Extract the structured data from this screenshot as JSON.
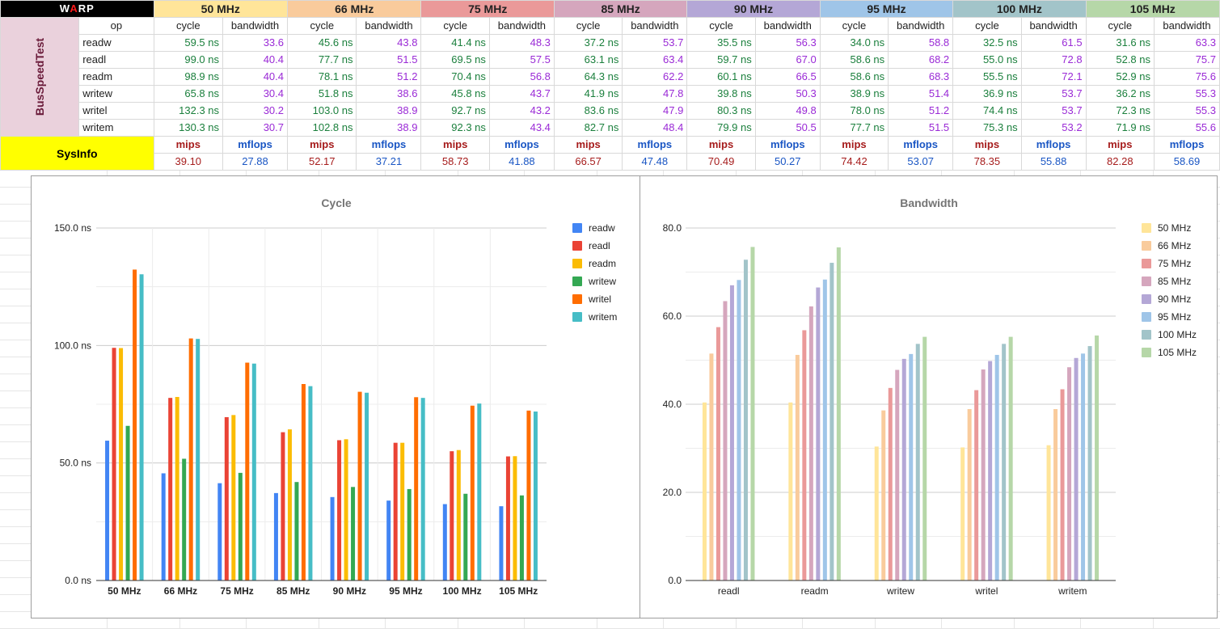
{
  "sheet": {
    "corner_label_pre": "W",
    "corner_label_accent": "A",
    "corner_label_post": "RP",
    "freq_headers": [
      "50 MHz",
      "66 MHz",
      "75 MHz",
      "85 MHz",
      "90 MHz",
      "95 MHz",
      "100 MHz",
      "105 MHz"
    ],
    "freq_colors": [
      "#ffe599",
      "#f9cb9c",
      "#ea9999",
      "#d5a6bd",
      "#b4a7d6",
      "#9fc5e8",
      "#a2c4c9",
      "#b6d7a8"
    ],
    "op_header": "op",
    "cycle_header": "cycle",
    "bandwidth_header": "bandwidth",
    "test_group_label": "BusSpeedTest",
    "rows": [
      {
        "op": "readw",
        "cycle": [
          "59.5 ns",
          "45.6 ns",
          "41.4 ns",
          "37.2 ns",
          "35.5 ns",
          "34.0 ns",
          "32.5 ns",
          "31.6 ns"
        ],
        "bandwidth": [
          "33.6",
          "43.8",
          "48.3",
          "53.7",
          "56.3",
          "58.8",
          "61.5",
          "63.3"
        ]
      },
      {
        "op": "readl",
        "cycle": [
          "99.0 ns",
          "77.7 ns",
          "69.5 ns",
          "63.1 ns",
          "59.7 ns",
          "58.6 ns",
          "55.0 ns",
          "52.8 ns"
        ],
        "bandwidth": [
          "40.4",
          "51.5",
          "57.5",
          "63.4",
          "67.0",
          "68.2",
          "72.8",
          "75.7"
        ]
      },
      {
        "op": "readm",
        "cycle": [
          "98.9 ns",
          "78.1 ns",
          "70.4 ns",
          "64.3 ns",
          "60.1 ns",
          "58.6 ns",
          "55.5 ns",
          "52.9 ns"
        ],
        "bandwidth": [
          "40.4",
          "51.2",
          "56.8",
          "62.2",
          "66.5",
          "68.3",
          "72.1",
          "75.6"
        ]
      },
      {
        "op": "writew",
        "cycle": [
          "65.8 ns",
          "51.8 ns",
          "45.8 ns",
          "41.9 ns",
          "39.8 ns",
          "38.9 ns",
          "36.9 ns",
          "36.2 ns"
        ],
        "bandwidth": [
          "30.4",
          "38.6",
          "43.7",
          "47.8",
          "50.3",
          "51.4",
          "53.7",
          "55.3"
        ]
      },
      {
        "op": "writel",
        "cycle": [
          "132.3 ns",
          "103.0 ns",
          "92.7 ns",
          "83.6 ns",
          "80.3 ns",
          "78.0 ns",
          "74.4 ns",
          "72.3 ns"
        ],
        "bandwidth": [
          "30.2",
          "38.9",
          "43.2",
          "47.9",
          "49.8",
          "51.2",
          "53.7",
          "55.3"
        ]
      },
      {
        "op": "writem",
        "cycle": [
          "130.3 ns",
          "102.8 ns",
          "92.3 ns",
          "82.7 ns",
          "79.9 ns",
          "77.7 ns",
          "75.3 ns",
          "71.9 ns"
        ],
        "bandwidth": [
          "30.7",
          "38.9",
          "43.4",
          "48.4",
          "50.5",
          "51.5",
          "53.2",
          "55.6"
        ]
      }
    ],
    "sysinfo_label": "SysInfo",
    "mips_header": "mips",
    "mflops_header": "mflops",
    "mips": [
      "39.10",
      "52.17",
      "58.73",
      "66.57",
      "70.49",
      "74.42",
      "78.35",
      "82.28"
    ],
    "mflops": [
      "27.88",
      "37.21",
      "41.88",
      "47.48",
      "50.27",
      "53.07",
      "55.88",
      "58.69"
    ]
  },
  "chart_data": [
    {
      "type": "bar",
      "title": "Cycle",
      "categories": [
        "50 MHz",
        "66 MHz",
        "75 MHz",
        "85 MHz",
        "90 MHz",
        "95 MHz",
        "100 MHz",
        "105 MHz"
      ],
      "ylim": [
        0,
        150
      ],
      "yticks": [
        "0.0 ns",
        "50.0 ns",
        "100.0 ns",
        "150.0 ns"
      ],
      "ytick_values": [
        0,
        50,
        100,
        150
      ],
      "legend_position": "right",
      "series": [
        {
          "name": "readw",
          "color": "#4285f4",
          "values": [
            59.5,
            45.6,
            41.4,
            37.2,
            35.5,
            34.0,
            32.5,
            31.6
          ]
        },
        {
          "name": "readl",
          "color": "#ea4335",
          "values": [
            99.0,
            77.7,
            69.5,
            63.1,
            59.7,
            58.6,
            55.0,
            52.8
          ]
        },
        {
          "name": "readm",
          "color": "#fbbc04",
          "values": [
            98.9,
            78.1,
            70.4,
            64.3,
            60.1,
            58.6,
            55.5,
            52.9
          ]
        },
        {
          "name": "writew",
          "color": "#34a853",
          "values": [
            65.8,
            51.8,
            45.8,
            41.9,
            39.8,
            38.9,
            36.9,
            36.2
          ]
        },
        {
          "name": "writel",
          "color": "#ff6d01",
          "values": [
            132.3,
            103.0,
            92.7,
            83.6,
            80.3,
            78.0,
            74.4,
            72.3
          ]
        },
        {
          "name": "writem",
          "color": "#46bdc6",
          "values": [
            130.3,
            102.8,
            92.3,
            82.7,
            79.9,
            77.7,
            75.3,
            71.9
          ]
        }
      ]
    },
    {
      "type": "bar",
      "title": "Bandwidth",
      "categories": [
        "readl",
        "readm",
        "writew",
        "writel",
        "writem"
      ],
      "ylim": [
        0,
        80
      ],
      "yticks": [
        "0.0",
        "20.0",
        "40.0",
        "60.0",
        "80.0"
      ],
      "ytick_values": [
        0,
        20,
        40,
        60,
        80
      ],
      "legend_position": "right",
      "series": [
        {
          "name": "50 MHz",
          "color": "#ffe599",
          "values": [
            40.4,
            40.4,
            30.4,
            30.2,
            30.7
          ]
        },
        {
          "name": "66 MHz",
          "color": "#f9cb9c",
          "values": [
            51.5,
            51.2,
            38.6,
            38.9,
            38.9
          ]
        },
        {
          "name": "75 MHz",
          "color": "#ea9999",
          "values": [
            57.5,
            56.8,
            43.7,
            43.2,
            43.4
          ]
        },
        {
          "name": "85 MHz",
          "color": "#d5a6bd",
          "values": [
            63.4,
            62.2,
            47.8,
            47.9,
            48.4
          ]
        },
        {
          "name": "90 MHz",
          "color": "#b4a7d6",
          "values": [
            67.0,
            66.5,
            50.3,
            49.8,
            50.5
          ]
        },
        {
          "name": "95 MHz",
          "color": "#9fc5e8",
          "values": [
            68.2,
            68.3,
            51.4,
            51.2,
            51.5
          ]
        },
        {
          "name": "100 MHz",
          "color": "#a2c4c9",
          "values": [
            72.8,
            72.1,
            53.7,
            53.7,
            53.2
          ]
        },
        {
          "name": "105 MHz",
          "color": "#b6d7a8",
          "values": [
            75.7,
            75.6,
            55.3,
            55.3,
            55.6
          ]
        }
      ]
    }
  ]
}
